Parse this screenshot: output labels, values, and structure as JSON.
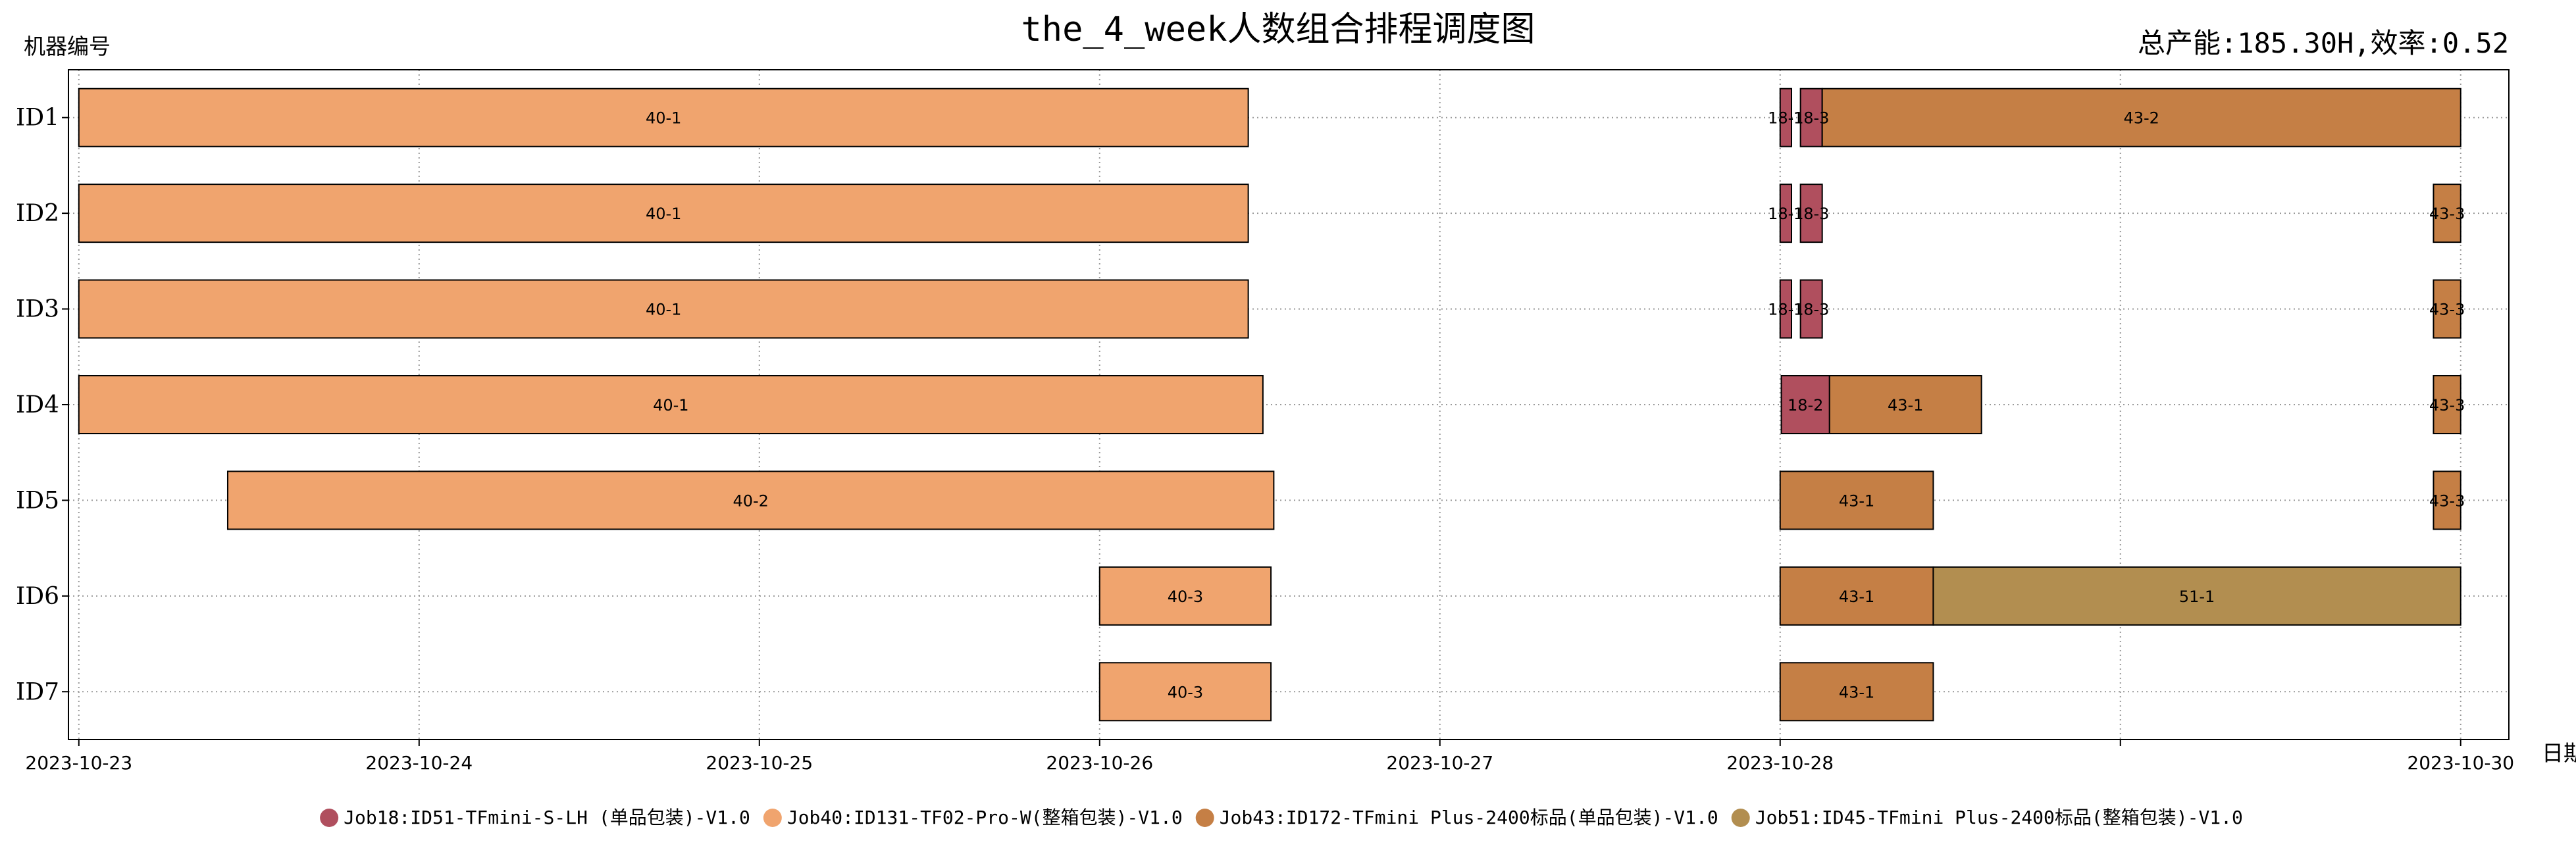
{
  "chart_data": {
    "type": "gantt",
    "title": "the_4_week人数组合排程调度图",
    "subtitle": "总产能:185.30H,效率:0.52",
    "ylabel": "机器编号",
    "xlabel": "日期",
    "machines": [
      "ID1",
      "ID2",
      "ID3",
      "ID4",
      "ID5",
      "ID6",
      "ID7"
    ],
    "x_ticks": [
      "2023-10-23",
      "2023-10-24",
      "2023-10-25",
      "2023-10-26",
      "2023-10-27",
      "2023-10-28",
      "2023-10-29",
      "2023-10-30"
    ],
    "x_tick_labels": [
      "2023-10-23",
      "2023-10-24",
      "2023-10-25",
      "2023-10-26",
      "2023-10-27",
      "2023-10-28",
      "",
      "2023-10-30"
    ],
    "xlim": [
      "2023-10-22 23:16",
      "2023-10-30 03:24"
    ],
    "grid": true,
    "legend_position": "bottom",
    "jobs": [
      {
        "id": "Job18",
        "name": "Job18:ID51-TFmini-S-LH (单品包装)-V1.0",
        "color": "#b04f5e"
      },
      {
        "id": "Job40",
        "name": "Job40:ID131-TF02-Pro-W(整箱包装)-V1.0",
        "color": "#f0a46e"
      },
      {
        "id": "Job43",
        "name": "Job43:ID172-TFmini Plus-2400标品(单品包装)-V1.0",
        "color": "#c57f45"
      },
      {
        "id": "Job51",
        "name": "Job51:ID45-TFmini Plus-2400标品(整箱包装)-V1.0",
        "color": "#b28e50"
      }
    ],
    "tasks": [
      {
        "machine": "ID1",
        "label": "40-1",
        "job": "Job40",
        "start": "2023-10-23 00:00",
        "end": "2023-10-26 10:29"
      },
      {
        "machine": "ID1",
        "label": "18-1",
        "job": "Job18",
        "start": "2023-10-28 00:00",
        "end": "2023-10-28 00:48"
      },
      {
        "machine": "ID1",
        "label": "18-3",
        "job": "Job18",
        "start": "2023-10-28 01:26",
        "end": "2023-10-28 02:58"
      },
      {
        "machine": "ID1",
        "label": "43-2",
        "job": "Job43",
        "start": "2023-10-28 02:58",
        "end": "2023-10-30 00:00"
      },
      {
        "machine": "ID2",
        "label": "40-1",
        "job": "Job40",
        "start": "2023-10-23 00:00",
        "end": "2023-10-26 10:29"
      },
      {
        "machine": "ID2",
        "label": "18-1",
        "job": "Job18",
        "start": "2023-10-28 00:00",
        "end": "2023-10-28 00:48"
      },
      {
        "machine": "ID2",
        "label": "18-3",
        "job": "Job18",
        "start": "2023-10-28 01:26",
        "end": "2023-10-28 02:58"
      },
      {
        "machine": "ID2",
        "label": "43-3",
        "job": "Job43",
        "start": "2023-10-29 22:05",
        "end": "2023-10-30 00:00"
      },
      {
        "machine": "ID3",
        "label": "40-1",
        "job": "Job40",
        "start": "2023-10-23 00:00",
        "end": "2023-10-26 10:29"
      },
      {
        "machine": "ID3",
        "label": "18-1",
        "job": "Job18",
        "start": "2023-10-28 00:00",
        "end": "2023-10-28 00:48"
      },
      {
        "machine": "ID3",
        "label": "18-3",
        "job": "Job18",
        "start": "2023-10-28 01:26",
        "end": "2023-10-28 02:58"
      },
      {
        "machine": "ID3",
        "label": "43-3",
        "job": "Job43",
        "start": "2023-10-29 22:05",
        "end": "2023-10-30 00:00"
      },
      {
        "machine": "ID4",
        "label": "40-1",
        "job": "Job40",
        "start": "2023-10-23 00:00",
        "end": "2023-10-26 11:31"
      },
      {
        "machine": "ID4",
        "label": "18-2",
        "job": "Job18",
        "start": "2023-10-28 00:05",
        "end": "2023-10-28 03:29"
      },
      {
        "machine": "ID4",
        "label": "43-1",
        "job": "Job43",
        "start": "2023-10-28 03:29",
        "end": "2023-10-28 14:12"
      },
      {
        "machine": "ID4",
        "label": "43-3",
        "job": "Job43",
        "start": "2023-10-29 22:05",
        "end": "2023-10-30 00:00"
      },
      {
        "machine": "ID5",
        "label": "40-2",
        "job": "Job40",
        "start": "2023-10-23 10:30",
        "end": "2023-10-26 12:17"
      },
      {
        "machine": "ID5",
        "label": "43-1",
        "job": "Job43",
        "start": "2023-10-28 00:00",
        "end": "2023-10-28 10:48"
      },
      {
        "machine": "ID5",
        "label": "43-3",
        "job": "Job43",
        "start": "2023-10-29 22:05",
        "end": "2023-10-30 00:00"
      },
      {
        "machine": "ID6",
        "label": "40-3",
        "job": "Job40",
        "start": "2023-10-26 00:00",
        "end": "2023-10-26 12:05"
      },
      {
        "machine": "ID6",
        "label": "43-1",
        "job": "Job43",
        "start": "2023-10-28 00:00",
        "end": "2023-10-28 10:48"
      },
      {
        "machine": "ID6",
        "label": "51-1",
        "job": "Job51",
        "start": "2023-10-28 10:48",
        "end": "2023-10-30 00:00"
      },
      {
        "machine": "ID7",
        "label": "40-3",
        "job": "Job40",
        "start": "2023-10-26 00:00",
        "end": "2023-10-26 12:05"
      },
      {
        "machine": "ID7",
        "label": "43-1",
        "job": "Job43",
        "start": "2023-10-28 00:00",
        "end": "2023-10-28 10:48"
      }
    ]
  }
}
